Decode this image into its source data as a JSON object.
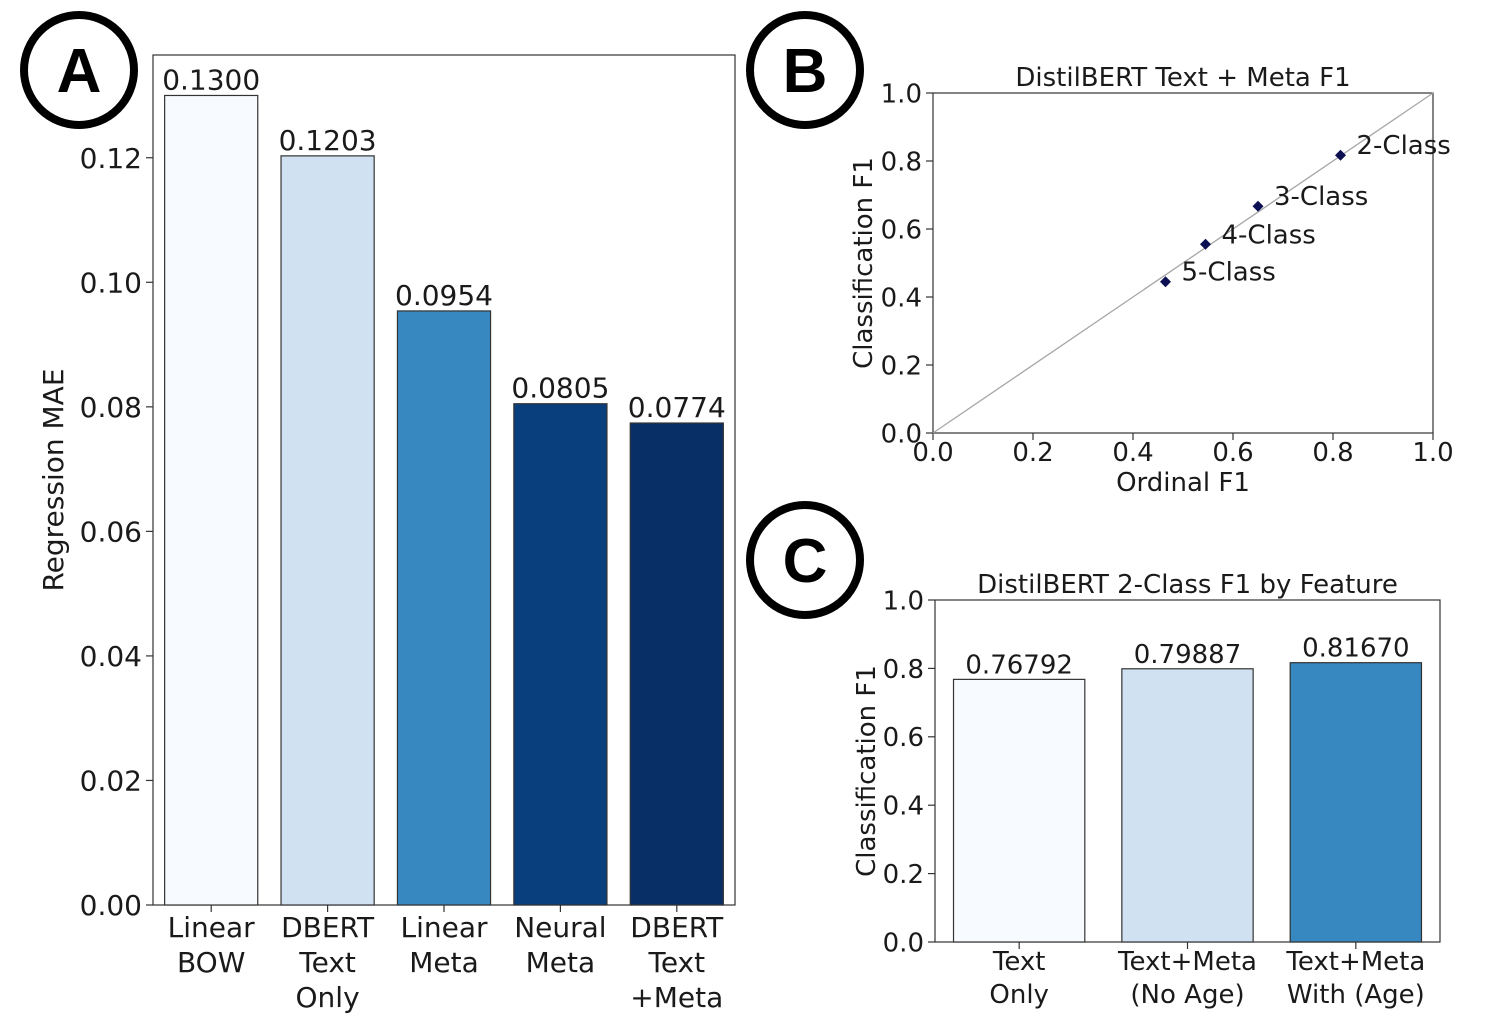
{
  "panels": [
    {
      "id": "A",
      "label": "A"
    },
    {
      "id": "B",
      "label": "B"
    },
    {
      "id": "C",
      "label": "C"
    }
  ],
  "chart_data": [
    {
      "panel": "A",
      "type": "bar",
      "title": "",
      "xlabel": "",
      "ylabel": "Regression MAE",
      "categories": [
        [
          "Linear",
          "BOW"
        ],
        [
          "DBERT",
          "Text",
          "Only"
        ],
        [
          "Linear",
          "Meta"
        ],
        [
          "Neural",
          "Meta"
        ],
        [
          "DBERT",
          "Text",
          "+Meta"
        ]
      ],
      "values": [
        0.13,
        0.1203,
        0.0954,
        0.0805,
        0.0774
      ],
      "value_labels": [
        "0.1300",
        "0.1203",
        "0.0954",
        "0.0805",
        "0.0774"
      ],
      "colors": [
        "#f7fbff",
        "#d0e1f2",
        "#3787c0",
        "#0a3f7e",
        "#082f66"
      ],
      "ylim": [
        0,
        0.1365
      ],
      "yticks": [
        0.0,
        0.02,
        0.04,
        0.06,
        0.08,
        0.1,
        0.12
      ],
      "ytick_labels": [
        "0.00",
        "0.02",
        "0.04",
        "0.06",
        "0.08",
        "0.10",
        "0.12"
      ],
      "grid": false,
      "legend": null
    },
    {
      "panel": "B",
      "type": "scatter",
      "title": "DistilBERT Text + Meta F1",
      "xlabel": "Ordinal F1",
      "ylabel": "Classification F1",
      "points": [
        {
          "label": "2-Class",
          "x": 0.815,
          "y": 0.817
        },
        {
          "label": "3-Class",
          "x": 0.65,
          "y": 0.667
        },
        {
          "label": "4-Class",
          "x": 0.545,
          "y": 0.555
        },
        {
          "label": "5-Class",
          "x": 0.465,
          "y": 0.445
        }
      ],
      "marker_color": "#0c1052",
      "diagonal_line": true,
      "xlim": [
        0,
        1
      ],
      "ylim": [
        0,
        1
      ],
      "xticks": [
        0.0,
        0.2,
        0.4,
        0.6,
        0.8,
        1.0
      ],
      "xtick_labels": [
        "0.0",
        "0.2",
        "0.4",
        "0.6",
        "0.8",
        "1.0"
      ],
      "yticks": [
        0.0,
        0.2,
        0.4,
        0.6,
        0.8,
        1.0
      ],
      "ytick_labels": [
        "0.0",
        "0.2",
        "0.4",
        "0.6",
        "0.8",
        "1.0"
      ],
      "grid": false,
      "legend": null
    },
    {
      "panel": "C",
      "type": "bar",
      "title": "DistilBERT 2-Class F1 by Feature",
      "xlabel": "",
      "ylabel": "Classification F1",
      "categories": [
        [
          "Text",
          "Only"
        ],
        [
          "Text+Meta",
          "(No Age)"
        ],
        [
          "Text+Meta",
          "With (Age)"
        ]
      ],
      "values": [
        0.76792,
        0.79887,
        0.8167
      ],
      "value_labels": [
        "0.76792",
        "0.79887",
        "0.81670"
      ],
      "colors": [
        "#f7fbff",
        "#d0e1f2",
        "#3787c0"
      ],
      "ylim": [
        0,
        1
      ],
      "yticks": [
        0.0,
        0.2,
        0.4,
        0.6,
        0.8,
        1.0
      ],
      "ytick_labels": [
        "0.0",
        "0.2",
        "0.4",
        "0.6",
        "0.8",
        "1.0"
      ],
      "grid": false,
      "legend": null
    }
  ]
}
